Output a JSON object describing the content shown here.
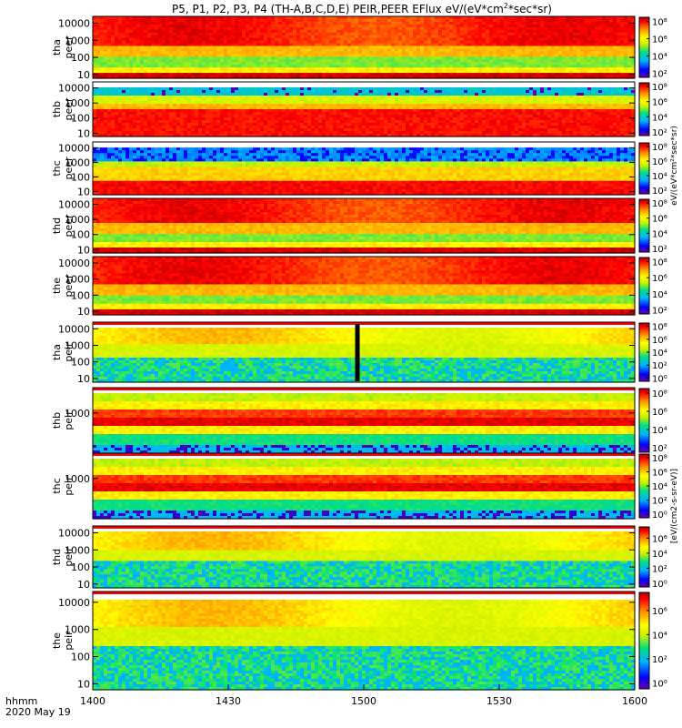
{
  "chart_data": {
    "type": "heatmap",
    "title": "P5, P1, P2, P3, P4 (TH-A,B,C,D,E) PEIR,PEER EFlux eV/(eV*cm²*sec*sr)",
    "title_prefix": "P5, P1, P2, P3, P4 (TH-A,B,C,D,E) PEIR,PEER EFlux eV/(eV*cm",
    "title_sup": "2",
    "title_suffix": "*sec*sr)",
    "x_tick_labels": [
      "1400",
      "1430",
      "1500",
      "1530",
      "1600"
    ],
    "x_ticks": [
      1400,
      1430,
      1500,
      1530,
      1600
    ],
    "x_minutes": [
      0,
      30,
      60,
      90,
      120
    ],
    "xlim_minutes": [
      0,
      120
    ],
    "xlabel": "hhmm",
    "date_label": "2020 May 19",
    "log_y": true,
    "colorscale": [
      "#6a00a8",
      "#0000ff",
      "#00b4ff",
      "#00e080",
      "#c8f000",
      "#ffff00",
      "#ff9000",
      "#ff0000",
      "#b00000"
    ],
    "colorbar_label_ions": "[eV/(cm2-s-sr-eV)]",
    "colorbar_label_electrons": "eV/(eV*cm²*sec*sr)",
    "panels": [
      {
        "probe": "tha",
        "species": "peer",
        "y_tick_labels": [
          "10000",
          "1000",
          "100",
          "10"
        ],
        "y_ticks": [
          10000,
          1000,
          100,
          10
        ],
        "ylim": [
          6,
          25000
        ],
        "cbar_labels": [
          "10⁸",
          "10⁶",
          "10⁴",
          "10²"
        ],
        "cbar_levels": [
          8,
          6,
          4,
          2
        ],
        "cbar_range": [
          1.5,
          8.5
        ]
      },
      {
        "probe": "thb",
        "species": "peer",
        "y_tick_labels": [
          "10000",
          "1000",
          "100",
          "10"
        ],
        "y_ticks": [
          10000,
          1000,
          100,
          10
        ],
        "ylim": [
          6,
          25000
        ],
        "cbar_labels": [
          "10⁸",
          "10⁶",
          "10⁴",
          "10²"
        ],
        "cbar_levels": [
          8,
          6,
          4,
          2
        ],
        "cbar_range": [
          1.5,
          8.5
        ]
      },
      {
        "probe": "thc",
        "species": "peer",
        "y_tick_labels": [
          "10000",
          "1000",
          "100",
          "10"
        ],
        "y_ticks": [
          10000,
          1000,
          100,
          10
        ],
        "ylim": [
          6,
          25000
        ],
        "cbar_labels": [
          "10⁸",
          "10⁶",
          "10⁴",
          "10²"
        ],
        "cbar_levels": [
          8,
          6,
          4,
          2
        ],
        "cbar_range": [
          1.5,
          8.5
        ]
      },
      {
        "probe": "thd",
        "species": "peer",
        "y_tick_labels": [
          "10000",
          "1000",
          "100",
          "10"
        ],
        "y_ticks": [
          10000,
          1000,
          100,
          10
        ],
        "ylim": [
          6,
          25000
        ],
        "cbar_labels": [
          "10⁸",
          "10⁶",
          "10⁴",
          "10²"
        ],
        "cbar_levels": [
          8,
          6,
          4,
          2
        ],
        "cbar_range": [
          1.5,
          8.5
        ]
      },
      {
        "probe": "the",
        "species": "peer",
        "y_tick_labels": [
          "10000",
          "1000",
          "100",
          "10"
        ],
        "y_ticks": [
          10000,
          1000,
          100,
          10
        ],
        "ylim": [
          6,
          25000
        ],
        "cbar_labels": [
          "10⁸",
          "10⁶",
          "10⁴",
          "10²"
        ],
        "cbar_levels": [
          8,
          6,
          4,
          2
        ],
        "cbar_range": [
          1.5,
          8.5
        ]
      },
      {
        "probe": "tha",
        "species": "peir",
        "y_tick_labels": [
          "10000",
          "1000",
          "100",
          "10"
        ],
        "y_ticks": [
          10000,
          1000,
          100,
          10
        ],
        "ylim": [
          6,
          25000
        ],
        "cbar_labels": [
          "10⁸",
          "10⁶",
          "10⁴",
          "10²",
          "10⁰"
        ],
        "cbar_levels": [
          8,
          6,
          4,
          2,
          0
        ],
        "cbar_range": [
          -0.5,
          8.5
        ]
      },
      {
        "probe": "thb",
        "species": "peir",
        "y_tick_labels": [
          "1000"
        ],
        "y_ticks": [
          1000
        ],
        "ylim": [
          6,
          25000
        ],
        "cbar_labels": [
          "10⁸",
          "10⁶",
          "10⁴",
          "10²"
        ],
        "cbar_levels": [
          8,
          6,
          4,
          2
        ],
        "cbar_range": [
          1.5,
          8.5
        ]
      },
      {
        "probe": "thc",
        "species": "peir",
        "y_tick_labels": [
          "1000"
        ],
        "y_ticks": [
          1000
        ],
        "ylim": [
          6,
          25000
        ],
        "cbar_labels": [
          "10⁸",
          "10⁶",
          "10⁴",
          "10²",
          "10⁰"
        ],
        "cbar_levels": [
          8,
          6,
          4,
          2,
          0
        ],
        "cbar_range": [
          -0.5,
          8.5
        ]
      },
      {
        "probe": "thd",
        "species": "peir",
        "y_tick_labels": [
          "10000",
          "1000",
          "100",
          "10"
        ],
        "y_ticks": [
          10000,
          1000,
          100,
          10
        ],
        "ylim": [
          6,
          25000
        ],
        "cbar_labels": [
          "10⁶",
          "10⁴",
          "10²",
          "10⁰"
        ],
        "cbar_levels": [
          6,
          4,
          2,
          0
        ],
        "cbar_range": [
          -0.5,
          7.5
        ]
      },
      {
        "probe": "the",
        "species": "peir",
        "y_tick_labels": [
          "10000",
          "1000",
          "100",
          "10"
        ],
        "y_ticks": [
          10000,
          1000,
          100,
          10
        ],
        "ylim": [
          6,
          25000
        ],
        "cbar_labels": [
          "10⁶",
          "10⁴",
          "10²",
          "10⁰"
        ],
        "cbar_levels": [
          6,
          4,
          2,
          0
        ],
        "cbar_range": [
          -0.5,
          7.5
        ]
      }
    ]
  }
}
